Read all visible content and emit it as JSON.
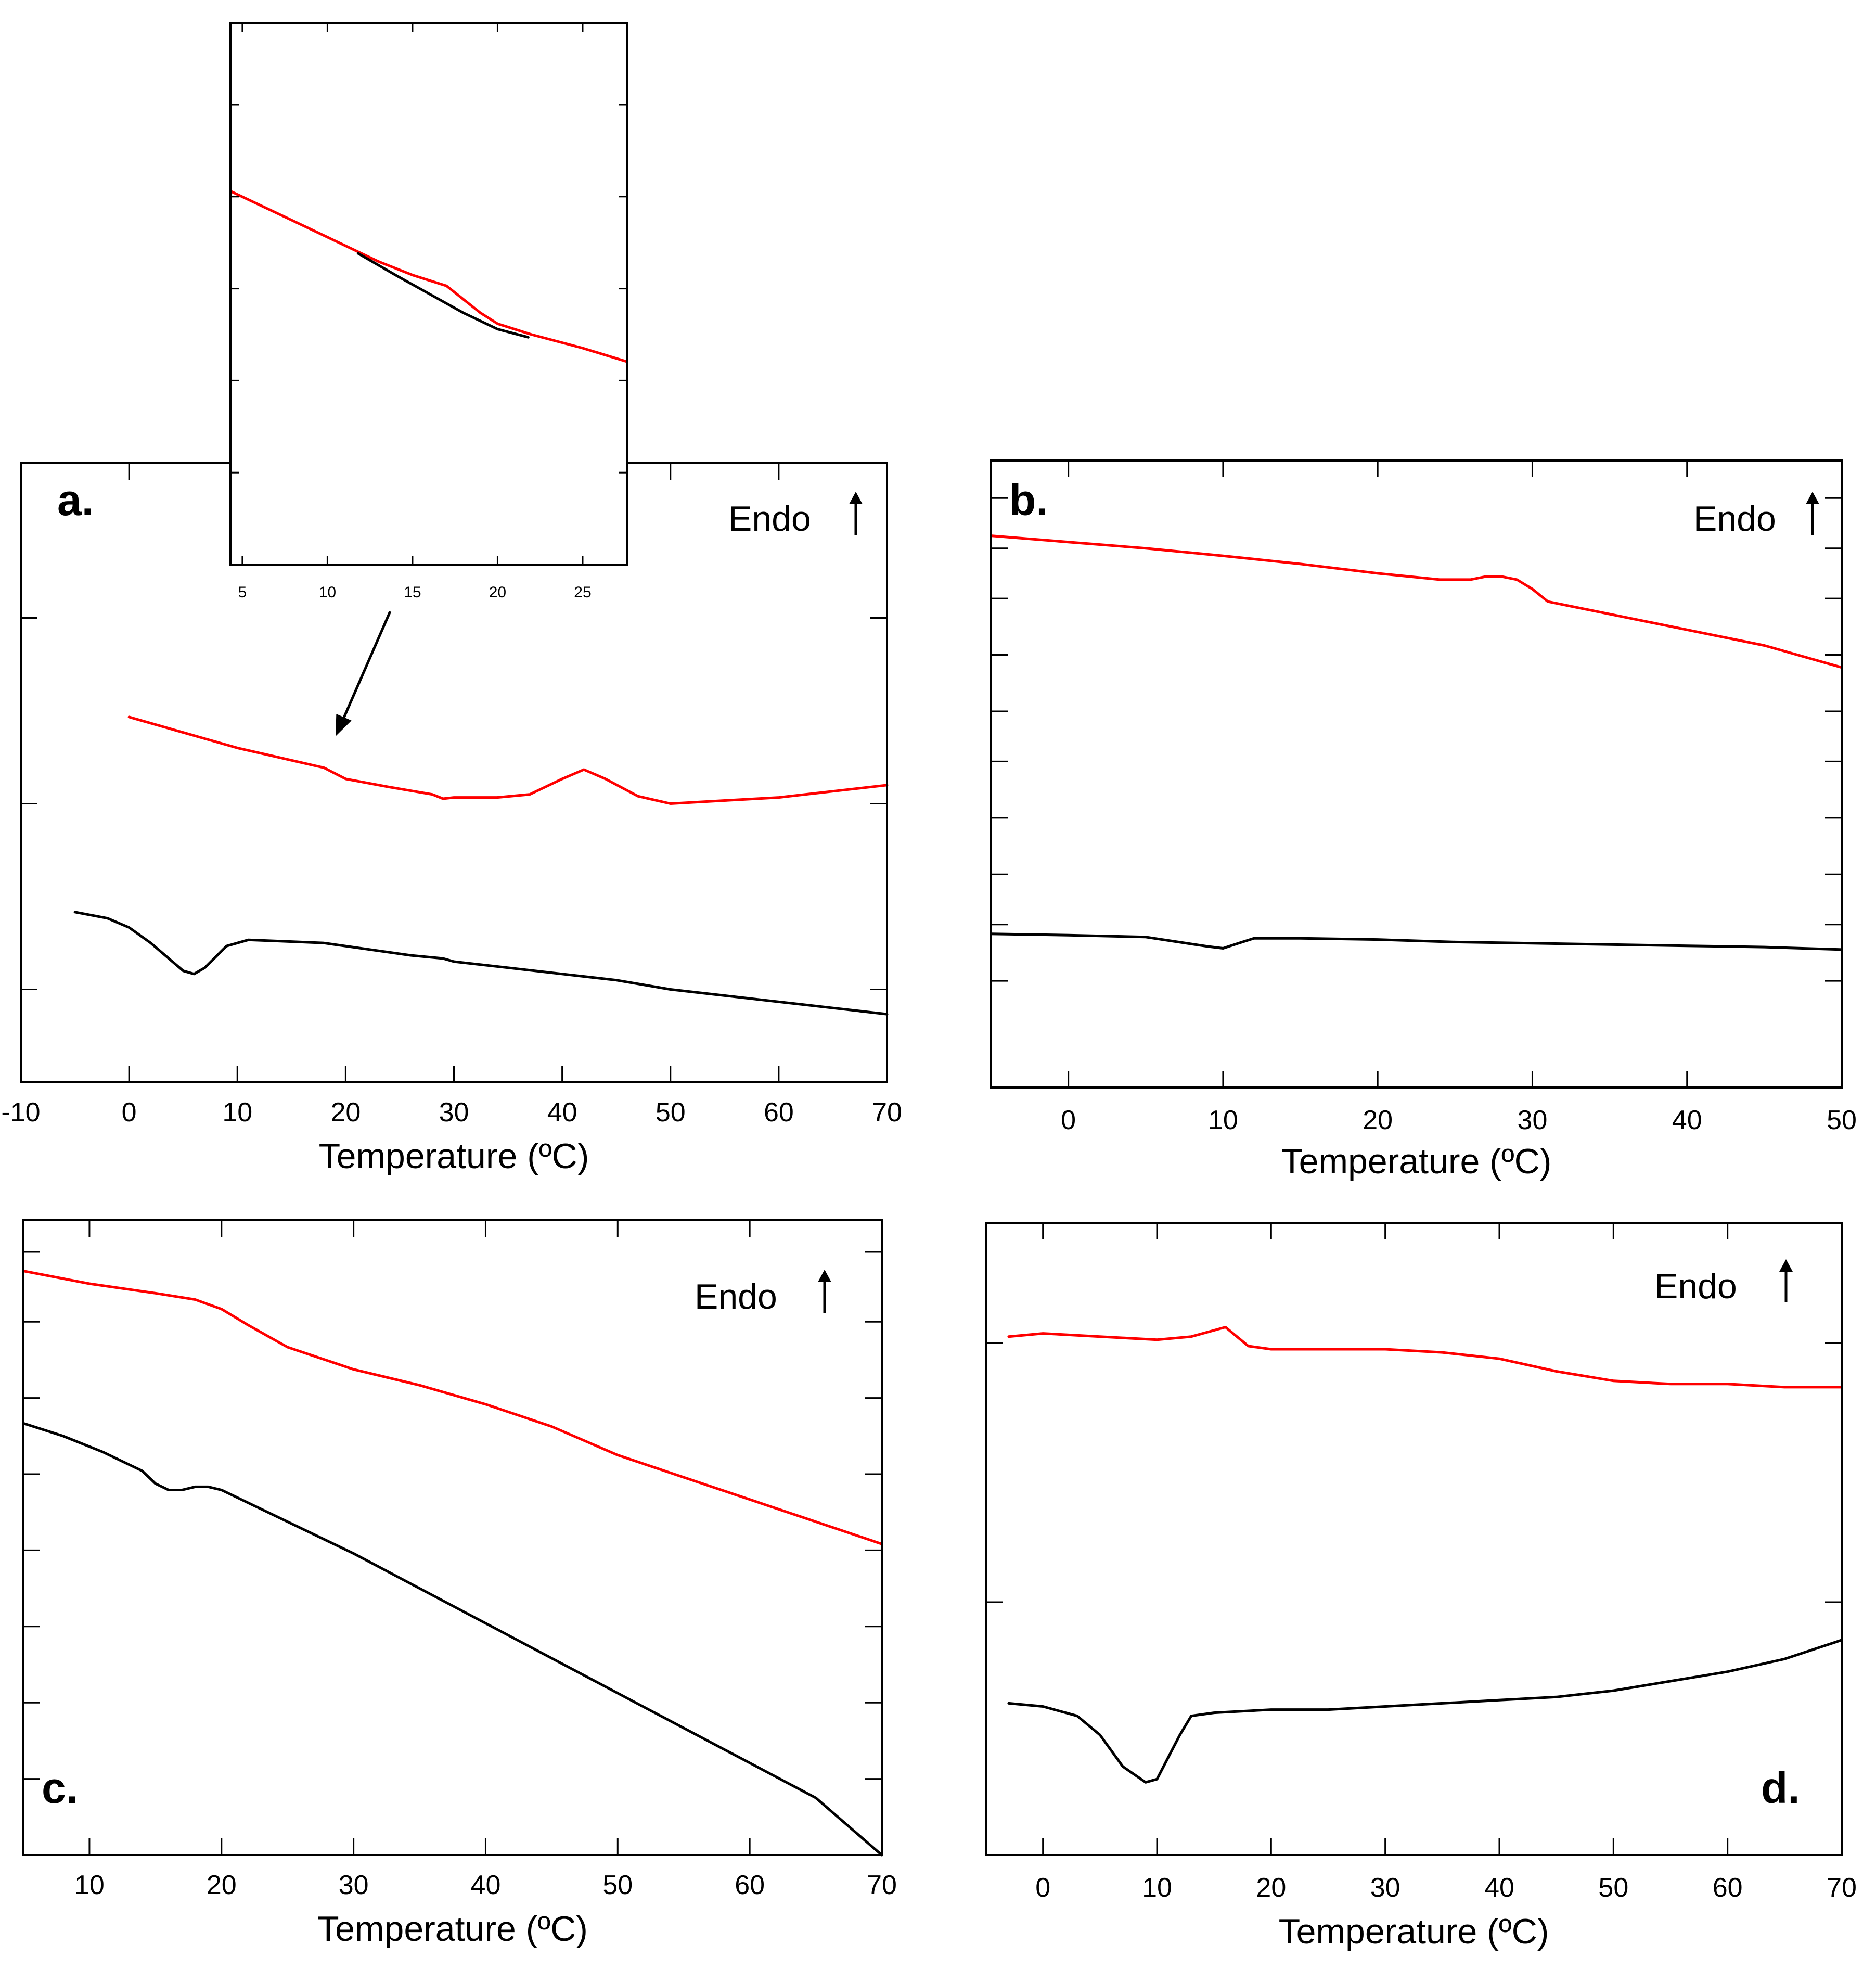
{
  "colors": {
    "heating": "#ff0000",
    "cooling": "#000000",
    "axis": "#000000"
  },
  "chart_data": [
    {
      "panel": "a",
      "type": "line",
      "label": "a.",
      "annotation": "Endo",
      "xlabel": "Temperature (ºC)",
      "xlim": [
        -10,
        70
      ],
      "xticks": [
        -10,
        0,
        10,
        20,
        30,
        40,
        50,
        60,
        70
      ],
      "ylim": [
        0,
        1
      ],
      "yticks": [
        0.15,
        0.45,
        0.75
      ],
      "series": [
        {
          "color": "#ff0000",
          "x": [
            0,
            5,
            10,
            15,
            18,
            20,
            24,
            28,
            29,
            30,
            34,
            37,
            40,
            42,
            44,
            47,
            50,
            55,
            60,
            65,
            70
          ],
          "y": [
            0.59,
            0.565,
            0.54,
            0.52,
            0.508,
            0.49,
            0.477,
            0.465,
            0.458,
            0.46,
            0.46,
            0.465,
            0.49,
            0.505,
            0.49,
            0.462,
            0.45,
            0.455,
            0.46,
            0.47,
            0.48
          ]
        },
        {
          "color": "#000000",
          "x": [
            -5,
            -2,
            0,
            2,
            4,
            5,
            6,
            7,
            9,
            11,
            14,
            18,
            22,
            26,
            29,
            30,
            35,
            40,
            45,
            50,
            55,
            60,
            65,
            70
          ],
          "y": [
            0.275,
            0.265,
            0.25,
            0.225,
            0.195,
            0.18,
            0.175,
            0.185,
            0.22,
            0.23,
            0.228,
            0.225,
            0.215,
            0.205,
            0.2,
            0.195,
            0.185,
            0.175,
            0.165,
            0.15,
            0.14,
            0.13,
            0.12,
            0.11
          ]
        }
      ]
    },
    {
      "panel": "a-inset",
      "type": "line",
      "xlim": [
        4.3,
        27.6
      ],
      "xticks": [
        5,
        10,
        15,
        20,
        25
      ],
      "ylim": [
        0,
        1
      ],
      "yticks": [
        0.17,
        0.34,
        0.51,
        0.68,
        0.85
      ],
      "series": [
        {
          "color": "#ff0000",
          "x": [
            4.3,
            8,
            11,
            13,
            15,
            17,
            18,
            19,
            20,
            22,
            25,
            27.6
          ],
          "y": [
            0.69,
            0.635,
            0.59,
            0.56,
            0.535,
            0.515,
            0.49,
            0.465,
            0.445,
            0.425,
            0.4,
            0.375
          ]
        },
        {
          "color": "#000000",
          "x": [
            11.8,
            14,
            16,
            18,
            20,
            21.8
          ],
          "y": [
            0.575,
            0.535,
            0.5,
            0.465,
            0.435,
            0.42
          ]
        }
      ]
    },
    {
      "panel": "b",
      "type": "line",
      "label": "b.",
      "annotation": "Endo",
      "xlabel": "Temperature (ºC)",
      "xlim": [
        -5,
        50
      ],
      "xticks": [
        0,
        10,
        20,
        30,
        40,
        50
      ],
      "ylim": [
        0,
        1
      ],
      "yticks": [
        0.17,
        0.26,
        0.34,
        0.43,
        0.52,
        0.6,
        0.69,
        0.78,
        0.86,
        0.94
      ],
      "series": [
        {
          "color": "#ff0000",
          "x": [
            -5,
            0,
            5,
            10,
            15,
            20,
            24,
            26,
            27,
            28,
            29,
            30,
            31,
            35,
            40,
            45,
            50
          ],
          "y": [
            0.88,
            0.87,
            0.86,
            0.848,
            0.835,
            0.82,
            0.81,
            0.81,
            0.815,
            0.815,
            0.81,
            0.795,
            0.775,
            0.755,
            0.73,
            0.705,
            0.67
          ]
        },
        {
          "color": "#000000",
          "x": [
            -5,
            0,
            5,
            9,
            10,
            11,
            12,
            15,
            20,
            25,
            30,
            35,
            40,
            45,
            50
          ],
          "y": [
            0.245,
            0.243,
            0.24,
            0.225,
            0.222,
            0.23,
            0.238,
            0.238,
            0.236,
            0.232,
            0.23,
            0.228,
            0.226,
            0.224,
            0.22
          ]
        }
      ]
    },
    {
      "panel": "c",
      "type": "line",
      "label": "c.",
      "annotation": "Endo",
      "xlabel": "Temperature (ºC)",
      "xlim": [
        5,
        70
      ],
      "xticks": [
        10,
        20,
        30,
        40,
        50,
        60,
        70
      ],
      "ylim": [
        0,
        1
      ],
      "yticks": [
        0.12,
        0.24,
        0.36,
        0.48,
        0.6,
        0.72,
        0.84,
        0.95
      ],
      "series": [
        {
          "color": "#ff0000",
          "x": [
            5,
            10,
            15,
            18,
            20,
            22,
            25,
            30,
            35,
            40,
            45,
            50,
            55,
            60,
            65,
            70
          ],
          "y": [
            0.92,
            0.9,
            0.885,
            0.875,
            0.86,
            0.835,
            0.8,
            0.765,
            0.74,
            0.71,
            0.675,
            0.63,
            0.595,
            0.56,
            0.525,
            0.49
          ]
        },
        {
          "color": "#000000",
          "x": [
            5,
            8,
            11,
            14,
            15,
            16,
            17,
            18,
            19,
            20,
            25,
            30,
            35,
            40,
            45,
            50,
            55,
            60,
            65,
            70
          ],
          "y": [
            0.68,
            0.66,
            0.635,
            0.605,
            0.585,
            0.575,
            0.575,
            0.58,
            0.58,
            0.575,
            0.525,
            0.475,
            0.42,
            0.365,
            0.31,
            0.255,
            0.2,
            0.145,
            0.09,
            0.0
          ]
        }
      ]
    },
    {
      "panel": "d",
      "type": "line",
      "label": "d.",
      "annotation": "Endo",
      "xlabel": "Temperature (ºC)",
      "xlim": [
        -5,
        70
      ],
      "xticks": [
        0,
        10,
        20,
        30,
        40,
        50,
        60,
        70
      ],
      "ylim": [
        0,
        1
      ],
      "yticks": [
        0.4,
        0.81
      ],
      "series": [
        {
          "color": "#ff0000",
          "x": [
            -3,
            0,
            5,
            10,
            13,
            15,
            16,
            17,
            18,
            20,
            25,
            30,
            35,
            40,
            45,
            50,
            55,
            60,
            65,
            70
          ],
          "y": [
            0.82,
            0.825,
            0.82,
            0.815,
            0.82,
            0.83,
            0.835,
            0.82,
            0.805,
            0.8,
            0.8,
            0.8,
            0.795,
            0.785,
            0.765,
            0.75,
            0.745,
            0.745,
            0.74,
            0.74
          ]
        },
        {
          "color": "#000000",
          "x": [
            -3,
            0,
            3,
            5,
            7,
            9,
            10,
            11,
            12,
            13,
            15,
            20,
            25,
            30,
            35,
            40,
            45,
            50,
            55,
            60,
            65,
            70
          ],
          "y": [
            0.24,
            0.235,
            0.22,
            0.19,
            0.14,
            0.115,
            0.12,
            0.155,
            0.19,
            0.22,
            0.225,
            0.23,
            0.23,
            0.235,
            0.24,
            0.245,
            0.25,
            0.26,
            0.275,
            0.29,
            0.31,
            0.34
          ]
        }
      ]
    }
  ]
}
